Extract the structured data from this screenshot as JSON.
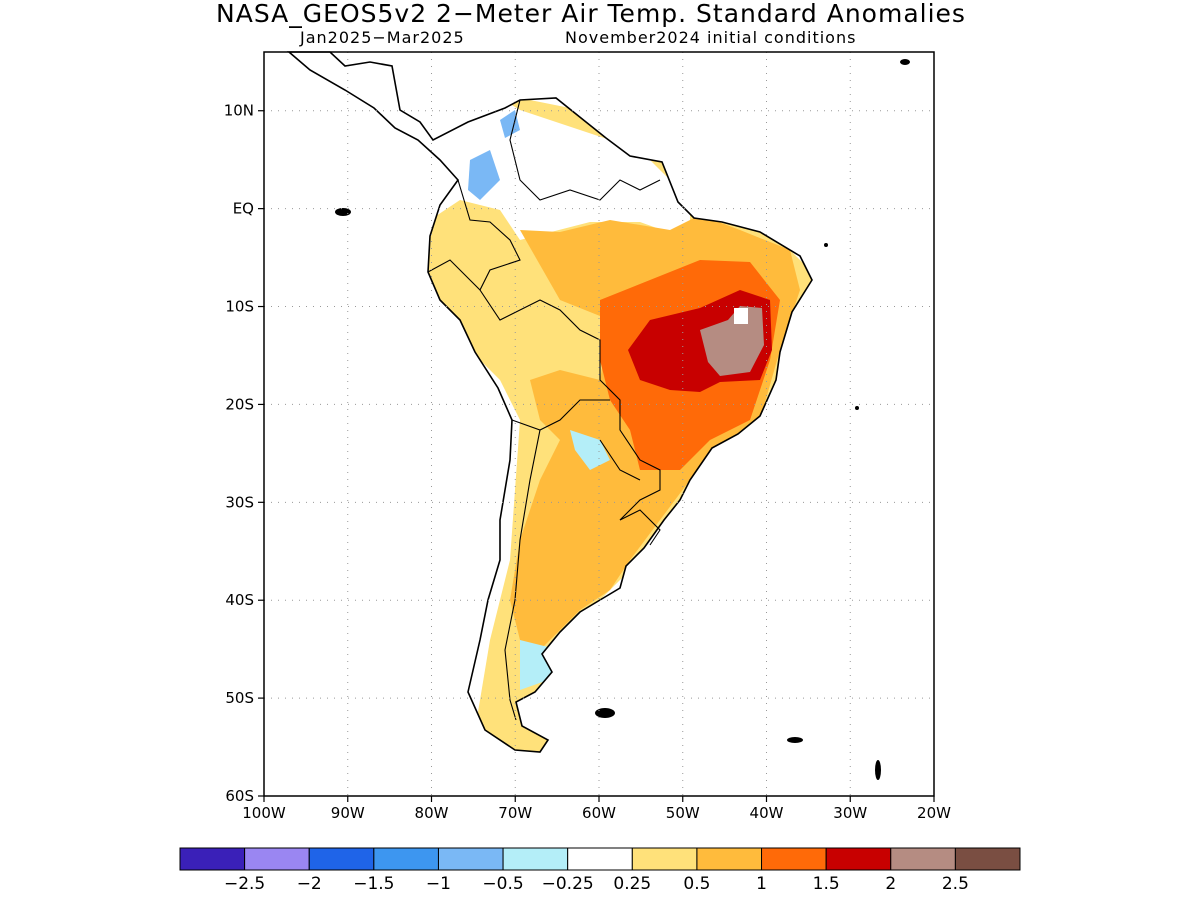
{
  "title": "NASA_GEOS5v2 2−Meter Air Temp. Standard Anomalies",
  "subtitle_period": "Jan2025−Mar2025",
  "subtitle_init": "November2024 initial conditions",
  "map": {
    "lon_range": [
      -100,
      -20
    ],
    "lat_range": [
      -60,
      16
    ],
    "lat_labels": [
      "10N",
      "EQ",
      "10S",
      "20S",
      "30S",
      "40S",
      "50S",
      "60S"
    ],
    "lat_values": [
      10,
      0,
      -10,
      -20,
      -30,
      -40,
      -50,
      -60
    ],
    "lon_labels": [
      "100W",
      "90W",
      "80W",
      "70W",
      "60W",
      "50W",
      "40W",
      "30W",
      "20W"
    ],
    "lon_values": [
      -100,
      -90,
      -80,
      -70,
      -60,
      -50,
      -40,
      -30,
      -20
    ],
    "grid": true
  },
  "colorbar": {
    "colors": [
      "#3a20b8",
      "#9a86f2",
      "#1f64e8",
      "#3d96f0",
      "#7ab8f5",
      "#b4eef8",
      "#ffffff",
      "#ffe17a",
      "#ffbb3c",
      "#ff6a08",
      "#c80000",
      "#b58c82",
      "#7a4e42"
    ],
    "labels": [
      "−2.5",
      "−2",
      "−1.5",
      "−1",
      "−0.5",
      "−0.25",
      "0.25",
      "0.5",
      "1",
      "1.5",
      "2",
      "2.5"
    ]
  }
}
